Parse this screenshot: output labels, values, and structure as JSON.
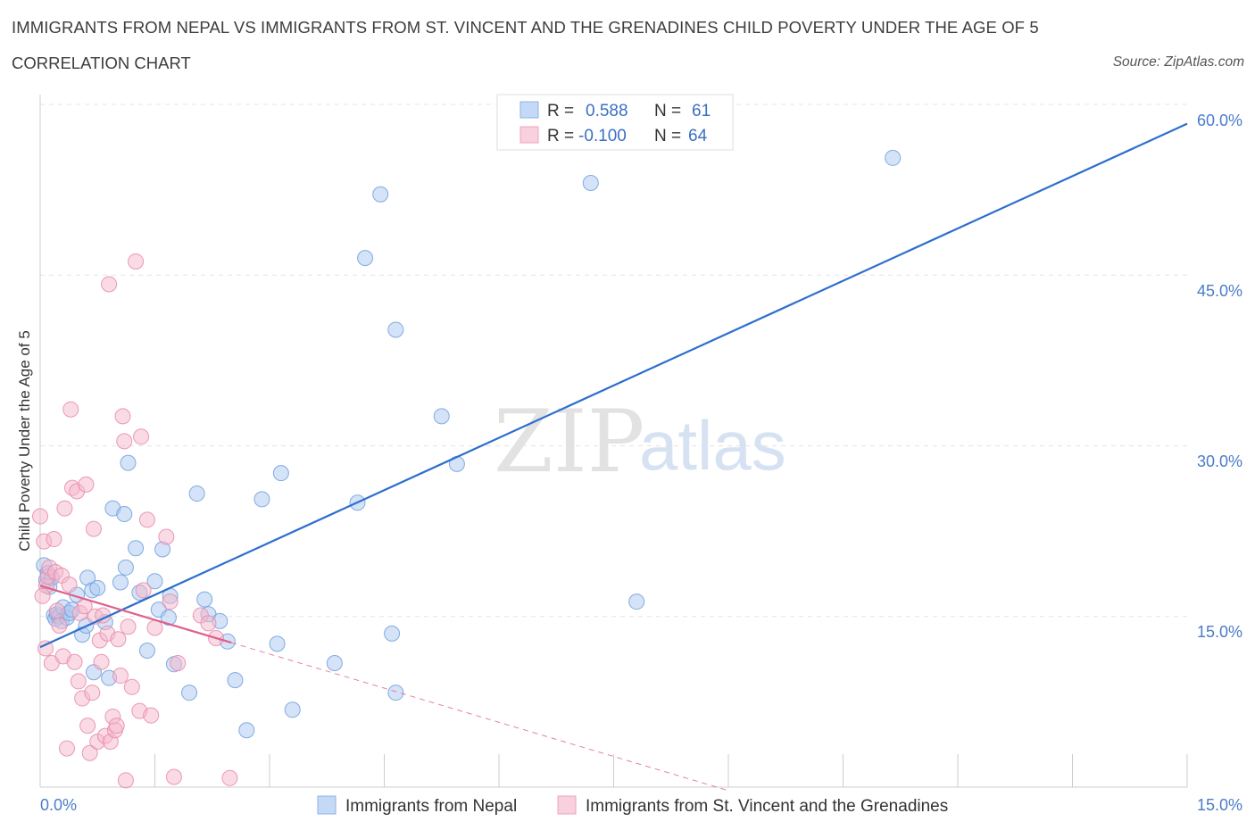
{
  "title": "IMMIGRANTS FROM NEPAL VS IMMIGRANTS FROM ST. VINCENT AND THE GRENADINES CHILD POVERTY UNDER THE AGE OF 5",
  "subtitle": "CORRELATION CHART",
  "source": "Source: ZipAtlas.com",
  "watermark": {
    "zip": "ZIP",
    "atlas": "atlas"
  },
  "legend_stats": [
    {
      "r_label": "R =",
      "r_value": "0.588",
      "n_label": "N =",
      "n_value": "61",
      "color": "#a9c8f0"
    },
    {
      "r_label": "R =",
      "r_value": "-0.100",
      "n_label": "N =",
      "n_value": "64",
      "color": "#f5b8cb"
    }
  ],
  "chart_data": {
    "type": "scatter",
    "xlabel": "",
    "ylabel": "Child Poverty Under the Age of 5",
    "xlim": [
      0,
      15
    ],
    "ylim": [
      0,
      60
    ],
    "x_tick_labels": [
      "0.0%",
      "15.0%"
    ],
    "y_tick_labels": [
      "15.0%",
      "30.0%",
      "45.0%",
      "60.0%"
    ],
    "y_ticks": [
      15,
      30,
      45,
      60
    ],
    "grid": true,
    "legend_position": "bottom",
    "series": [
      {
        "name": "Immigrants from Nepal",
        "color": "#a9c8f0",
        "stroke": "#6f9fdc",
        "trend_color": "#2d6fcc",
        "trend": {
          "x": [
            0,
            15
          ],
          "y": [
            12.3,
            58.3
          ]
        },
        "points": [
          [
            0.05,
            19.5
          ],
          [
            0.08,
            18.2
          ],
          [
            0.1,
            18.8
          ],
          [
            0.12,
            17.6
          ],
          [
            0.15,
            18.4
          ],
          [
            0.18,
            15.1
          ],
          [
            0.2,
            14.8
          ],
          [
            0.22,
            15.2
          ],
          [
            0.25,
            15.0
          ],
          [
            0.28,
            14.6
          ],
          [
            0.3,
            15.8
          ],
          [
            0.35,
            14.9
          ],
          [
            0.38,
            15.3
          ],
          [
            0.42,
            15.6
          ],
          [
            0.48,
            16.9
          ],
          [
            0.55,
            13.4
          ],
          [
            0.6,
            14.2
          ],
          [
            0.62,
            18.4
          ],
          [
            0.68,
            17.3
          ],
          [
            0.75,
            17.5
          ],
          [
            0.7,
            10.1
          ],
          [
            0.85,
            14.5
          ],
          [
            0.95,
            24.5
          ],
          [
            0.9,
            9.6
          ],
          [
            1.05,
            18.0
          ],
          [
            1.1,
            24.0
          ],
          [
            1.12,
            19.3
          ],
          [
            1.15,
            28.5
          ],
          [
            1.25,
            21.0
          ],
          [
            1.3,
            17.1
          ],
          [
            1.4,
            12.0
          ],
          [
            1.5,
            18.1
          ],
          [
            1.55,
            15.6
          ],
          [
            1.6,
            20.9
          ],
          [
            1.68,
            14.9
          ],
          [
            1.75,
            10.8
          ],
          [
            1.95,
            8.3
          ],
          [
            2.05,
            25.8
          ],
          [
            2.15,
            16.5
          ],
          [
            2.2,
            15.2
          ],
          [
            2.35,
            14.6
          ],
          [
            2.45,
            12.8
          ],
          [
            2.55,
            9.4
          ],
          [
            2.7,
            5.0
          ],
          [
            2.9,
            25.3
          ],
          [
            3.1,
            12.6
          ],
          [
            3.15,
            27.6
          ],
          [
            3.3,
            6.8
          ],
          [
            3.85,
            10.9
          ],
          [
            4.15,
            25.0
          ],
          [
            4.25,
            46.5
          ],
          [
            4.45,
            52.1
          ],
          [
            4.6,
            13.5
          ],
          [
            4.65,
            8.3
          ],
          [
            4.65,
            40.2
          ],
          [
            5.25,
            32.6
          ],
          [
            5.45,
            28.4
          ],
          [
            7.2,
            53.1
          ],
          [
            7.8,
            16.3
          ],
          [
            11.15,
            55.3
          ],
          [
            1.7,
            16.8
          ]
        ]
      },
      {
        "name": "Immigrants from St. Vincent and the Grenadines",
        "color": "#f5b8cb",
        "stroke": "#e68aa8",
        "trend_color": "#e0608a",
        "trend": {
          "x": [
            0,
            2.5
          ],
          "y": [
            17.7,
            12.7
          ]
        },
        "trend_dashed": {
          "x": [
            2.5,
            9.0
          ],
          "y": [
            12.7,
            -0.3
          ]
        },
        "points": [
          [
            0.0,
            23.8
          ],
          [
            0.05,
            21.6
          ],
          [
            0.08,
            17.7
          ],
          [
            0.1,
            18.5
          ],
          [
            0.12,
            19.3
          ],
          [
            0.15,
            10.9
          ],
          [
            0.18,
            21.8
          ],
          [
            0.2,
            18.9
          ],
          [
            0.22,
            15.5
          ],
          [
            0.25,
            14.2
          ],
          [
            0.28,
            18.6
          ],
          [
            0.3,
            11.5
          ],
          [
            0.32,
            24.5
          ],
          [
            0.35,
            3.4
          ],
          [
            0.38,
            17.8
          ],
          [
            0.4,
            33.2
          ],
          [
            0.42,
            26.3
          ],
          [
            0.45,
            11.0
          ],
          [
            0.48,
            26.0
          ],
          [
            0.5,
            9.3
          ],
          [
            0.52,
            15.3
          ],
          [
            0.55,
            7.8
          ],
          [
            0.58,
            15.9
          ],
          [
            0.6,
            26.6
          ],
          [
            0.62,
            5.4
          ],
          [
            0.65,
            3.0
          ],
          [
            0.68,
            8.3
          ],
          [
            0.7,
            22.7
          ],
          [
            0.72,
            15.0
          ],
          [
            0.75,
            4.0
          ],
          [
            0.78,
            12.9
          ],
          [
            0.8,
            11.0
          ],
          [
            0.82,
            15.1
          ],
          [
            0.85,
            4.5
          ],
          [
            0.88,
            13.5
          ],
          [
            0.9,
            44.2
          ],
          [
            0.92,
            4.0
          ],
          [
            0.95,
            6.2
          ],
          [
            0.98,
            5.0
          ],
          [
            1.0,
            5.4
          ],
          [
            1.02,
            13.0
          ],
          [
            1.05,
            9.8
          ],
          [
            1.08,
            32.6
          ],
          [
            1.1,
            30.4
          ],
          [
            1.12,
            0.6
          ],
          [
            1.15,
            14.1
          ],
          [
            1.2,
            8.8
          ],
          [
            1.25,
            46.2
          ],
          [
            1.3,
            6.7
          ],
          [
            1.32,
            30.8
          ],
          [
            1.35,
            17.3
          ],
          [
            1.4,
            23.5
          ],
          [
            1.45,
            6.3
          ],
          [
            1.5,
            14.0
          ],
          [
            1.65,
            22.0
          ],
          [
            1.7,
            16.3
          ],
          [
            1.75,
            0.9
          ],
          [
            1.8,
            10.9
          ],
          [
            2.1,
            15.1
          ],
          [
            2.2,
            14.4
          ],
          [
            2.3,
            13.1
          ],
          [
            2.48,
            0.8
          ],
          [
            0.03,
            16.8
          ],
          [
            0.07,
            12.2
          ]
        ]
      }
    ]
  },
  "bottom_legend": [
    {
      "label": "Immigrants from Nepal",
      "color": "#a9c8f0"
    },
    {
      "label": "Immigrants from St. Vincent and the Grenadines",
      "color": "#f5b8cb"
    }
  ]
}
